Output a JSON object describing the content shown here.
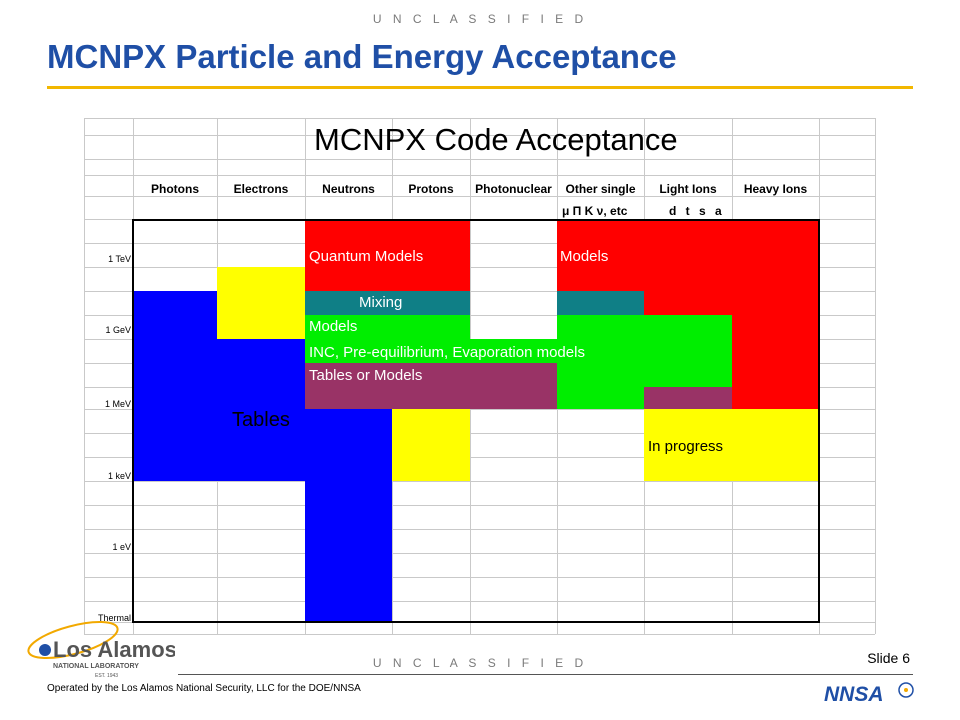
{
  "header": {
    "classification_top": "U N C L A S S I F I E D",
    "title": "MCNPX Particle and Energy Acceptance"
  },
  "chart": {
    "title": "MCNPX Code Acceptance",
    "columns": [
      "Photons",
      "Electrons",
      "Neutrons",
      "Protons",
      "Photonuclear",
      "Other single",
      "Light Ions",
      "Heavy Ions"
    ],
    "other_single_symbols": "μ Π K ν, etc",
    "light_ion_symbols": "d t s a",
    "energy_labels": [
      "1 TeV",
      "1 GeV",
      "1 MeV",
      "1 keV",
      "1 eV",
      "Thermal"
    ],
    "regions": [
      {
        "name": "quantum-models",
        "label": "Quantum Models",
        "color": "#ff0000"
      },
      {
        "name": "models-other",
        "label": "Models",
        "color": "#ff0000"
      },
      {
        "name": "mixing",
        "label": "Mixing",
        "color": "#0f7f86"
      },
      {
        "name": "models-green",
        "label": "Models",
        "color": "#00ee00"
      },
      {
        "name": "inc",
        "label": "INC, Pre-equilibrium, Evaporation models",
        "color": "#00ee00"
      },
      {
        "name": "tables-or-models",
        "label": "Tables or Models",
        "color": "#993366"
      },
      {
        "name": "tables",
        "label": "Tables",
        "color": "#0000ff"
      },
      {
        "name": "in-progress",
        "label": "In progress",
        "color": "#ffff00"
      }
    ],
    "colors": {
      "red": "#ff0000",
      "blue": "#0000ff",
      "yellow": "#ffff00",
      "green": "#00ee00",
      "teal": "#0f7f86",
      "purple": "#993366"
    }
  },
  "footer": {
    "classification_bottom": "U N C L A S S I F I E D",
    "slide": "Slide 6",
    "operated_by": "Operated by the Los Alamos National Security, LLC for the DOE/NNSA",
    "lanl_logo_text": "Los Alamos",
    "lanl_logo_sub": "NATIONAL LABORATORY",
    "lanl_est": "EST. 1943",
    "nnsa_logo_text": "NNSA"
  }
}
